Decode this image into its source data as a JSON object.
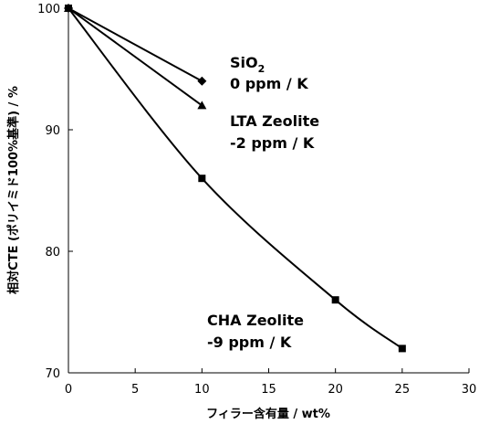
{
  "chart_data": {
    "type": "line",
    "xlabel": "フィラー含有量 / wt%",
    "ylabel": "相対CTE (ポリイミド100%基準) / %",
    "xlim": [
      0,
      30
    ],
    "ylim": [
      70,
      100
    ],
    "xticks": [
      0,
      5,
      10,
      15,
      20,
      25,
      30
    ],
    "yticks": [
      70,
      80,
      90,
      100
    ],
    "grid": false,
    "series": [
      {
        "name": "SiO2",
        "marker": "diamond",
        "x": [
          0,
          10
        ],
        "y": [
          100,
          94
        ],
        "label_lines": [
          "SiO",
          "0 ppm / K"
        ],
        "label_sub": "2"
      },
      {
        "name": "LTA Zeolite",
        "marker": "triangle",
        "x": [
          0,
          10
        ],
        "y": [
          100,
          92
        ],
        "label_lines": [
          "LTA Zeolite",
          "-2 ppm / K"
        ]
      },
      {
        "name": "CHA Zeolite",
        "marker": "square",
        "x": [
          0,
          10,
          20,
          25
        ],
        "y": [
          100,
          86,
          76,
          72
        ],
        "label_lines": [
          "CHA Zeolite",
          "-9 ppm / K"
        ]
      }
    ],
    "colors": {
      "line": "#000000",
      "axis": "#000000",
      "background": "#ffffff"
    }
  }
}
